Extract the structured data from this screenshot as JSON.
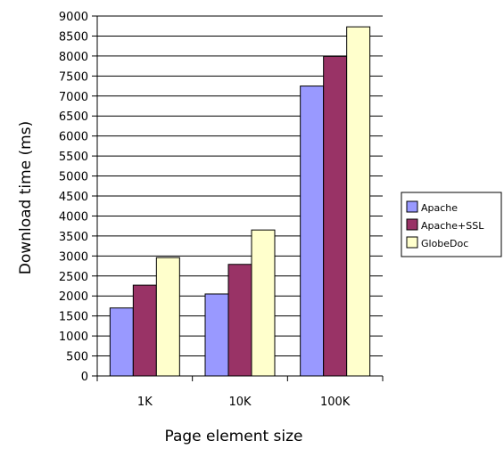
{
  "chart_data": {
    "type": "bar",
    "categories": [
      "1K",
      "10K",
      "100K"
    ],
    "series": [
      {
        "name": "Apache",
        "values": [
          1700,
          2050,
          7250
        ]
      },
      {
        "name": "Apache+SSL",
        "values": [
          2270,
          2790,
          7990
        ]
      },
      {
        "name": "GlobeDoc",
        "values": [
          2960,
          3650,
          8730
        ]
      }
    ],
    "colors": [
      "#9999ff",
      "#993366",
      "#ffffcc"
    ],
    "title": "",
    "xlabel": "Page element size",
    "ylabel": "Download time (ms)",
    "ylim": [
      0,
      9000
    ],
    "ytick_step": 500,
    "grid": "horizontal",
    "legend": "right"
  }
}
